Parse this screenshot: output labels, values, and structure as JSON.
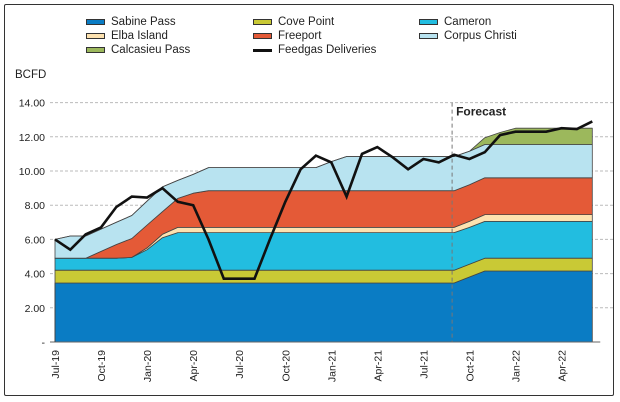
{
  "chart_data": {
    "type": "area",
    "stacked": true,
    "title": "",
    "xlabel": "",
    "ylabel": "BCFD",
    "ylim": [
      0,
      14
    ],
    "yticks": [
      "-",
      "2.00",
      "4.00",
      "6.00",
      "8.00",
      "10.00",
      "12.00",
      "14.00"
    ],
    "ytick_values": [
      0,
      2,
      4,
      6,
      8,
      10,
      12,
      14
    ],
    "grid": "horizontal-dashed",
    "legend_position": "top",
    "x": [
      "Jul-19",
      "Aug-19",
      "Sep-19",
      "Oct-19",
      "Nov-19",
      "Dec-19",
      "Jan-20",
      "Feb-20",
      "Mar-20",
      "Apr-20",
      "May-20",
      "Jun-20",
      "Jul-20",
      "Aug-20",
      "Sep-20",
      "Oct-20",
      "Nov-20",
      "Dec-20",
      "Jan-21",
      "Feb-21",
      "Mar-21",
      "Apr-21",
      "May-21",
      "Jun-21",
      "Jul-21",
      "Aug-21",
      "Sep-21",
      "Oct-21",
      "Nov-21",
      "Dec-21",
      "Jan-22",
      "Feb-22",
      "Mar-22",
      "Apr-22",
      "May-22",
      "Jun-22"
    ],
    "xtick_labels": [
      "Jul-19",
      "Oct-19",
      "Jan-20",
      "Apr-20",
      "Jul-20",
      "Oct-20",
      "Jan-21",
      "Apr-21",
      "Jul-21",
      "Oct-21",
      "Jan-22",
      "Apr-22"
    ],
    "forecast_start": "Sep-21",
    "forecast_label": "Forecast",
    "series": [
      {
        "name": "Sabine Pass",
        "kind": "area",
        "color": "#0a7cc4",
        "values": [
          3.45,
          3.45,
          3.45,
          3.45,
          3.45,
          3.45,
          3.45,
          3.45,
          3.45,
          3.45,
          3.45,
          3.45,
          3.45,
          3.45,
          3.45,
          3.45,
          3.45,
          3.45,
          3.45,
          3.45,
          3.45,
          3.45,
          3.45,
          3.45,
          3.45,
          3.45,
          3.45,
          3.8,
          4.15,
          4.15,
          4.15,
          4.15,
          4.15,
          4.15,
          4.15,
          4.15
        ]
      },
      {
        "name": "Cove Point",
        "kind": "area",
        "color": "#c9c935",
        "values": [
          0.75,
          0.75,
          0.75,
          0.75,
          0.75,
          0.75,
          0.75,
          0.75,
          0.75,
          0.75,
          0.75,
          0.75,
          0.75,
          0.75,
          0.75,
          0.75,
          0.75,
          0.75,
          0.75,
          0.75,
          0.75,
          0.75,
          0.75,
          0.75,
          0.75,
          0.75,
          0.75,
          0.75,
          0.75,
          0.75,
          0.75,
          0.75,
          0.75,
          0.75,
          0.75,
          0.75
        ]
      },
      {
        "name": "Cameron",
        "kind": "area",
        "color": "#22bde0",
        "values": [
          0.7,
          0.7,
          0.7,
          0.7,
          0.7,
          0.75,
          1.2,
          1.9,
          2.2,
          2.2,
          2.2,
          2.2,
          2.2,
          2.2,
          2.2,
          2.2,
          2.2,
          2.2,
          2.2,
          2.2,
          2.2,
          2.2,
          2.2,
          2.2,
          2.2,
          2.2,
          2.2,
          2.15,
          2.15,
          2.15,
          2.15,
          2.15,
          2.15,
          2.15,
          2.15,
          2.15
        ]
      },
      {
        "name": "Elba Island",
        "kind": "area",
        "color": "#fde2b0",
        "values": [
          0,
          0,
          0,
          0,
          0,
          0,
          0.1,
          0.2,
          0.3,
          0.3,
          0.3,
          0.3,
          0.3,
          0.3,
          0.3,
          0.3,
          0.3,
          0.3,
          0.3,
          0.3,
          0.3,
          0.3,
          0.3,
          0.3,
          0.3,
          0.3,
          0.3,
          0.35,
          0.4,
          0.4,
          0.4,
          0.4,
          0.4,
          0.4,
          0.4,
          0.4
        ]
      },
      {
        "name": "Freeport",
        "kind": "area",
        "color": "#e45a37",
        "values": [
          0,
          0,
          0,
          0.4,
          0.8,
          1.1,
          1.34,
          1.32,
          1.7,
          2.0,
          2.15,
          2.15,
          2.15,
          2.15,
          2.15,
          2.15,
          2.15,
          2.15,
          2.15,
          2.15,
          2.15,
          2.15,
          2.15,
          2.15,
          2.15,
          2.15,
          2.15,
          2.15,
          2.15,
          2.15,
          2.15,
          2.15,
          2.15,
          2.15,
          2.15,
          2.15
        ]
      },
      {
        "name": "Corpus Christi",
        "kind": "area",
        "color": "#b8e3f0",
        "values": [
          1.1,
          1.3,
          1.3,
          1.3,
          1.3,
          1.35,
          1.4,
          1.45,
          1.05,
          1.1,
          1.35,
          1.35,
          1.35,
          1.35,
          1.35,
          1.35,
          1.35,
          1.35,
          1.7,
          2.0,
          2.0,
          2.0,
          2.0,
          2.0,
          2.0,
          2.0,
          2.0,
          1.95,
          1.95,
          1.95,
          1.95,
          1.95,
          1.95,
          1.95,
          1.95,
          1.95
        ]
      },
      {
        "name": "Calcasieu Pass",
        "kind": "area",
        "color": "#9cb85c",
        "values": [
          0,
          0,
          0,
          0,
          0,
          0,
          0,
          0,
          0,
          0,
          0,
          0,
          0,
          0,
          0,
          0,
          0,
          0,
          0,
          0,
          0,
          0,
          0,
          0,
          0,
          0,
          0,
          0,
          0.4,
          0.7,
          0.95,
          0.95,
          0.95,
          0.95,
          0.95,
          0.95
        ]
      },
      {
        "name": "Feedgas Deliveries",
        "kind": "line",
        "color": "#111111",
        "values": [
          6.0,
          5.4,
          6.3,
          6.7,
          7.9,
          8.5,
          8.45,
          9.0,
          8.2,
          8.0,
          6.0,
          3.7,
          3.7,
          3.7,
          6.0,
          8.2,
          10.1,
          10.9,
          10.5,
          8.5,
          11.0,
          11.4,
          10.8,
          10.1,
          10.7,
          10.5,
          10.95,
          10.7,
          11.1,
          12.1,
          12.3,
          12.3,
          12.3,
          12.5,
          12.45,
          12.9
        ]
      }
    ]
  },
  "legend": {
    "items": [
      {
        "label": "Sabine Pass",
        "color": "#0a7cc4",
        "kind": "swatch"
      },
      {
        "label": "Cove Point",
        "color": "#c9c935",
        "kind": "swatch"
      },
      {
        "label": "Cameron",
        "color": "#22bde0",
        "kind": "swatch"
      },
      {
        "label": "Elba Island",
        "color": "#fde2b0",
        "kind": "swatch"
      },
      {
        "label": "Freeport",
        "color": "#e45a37",
        "kind": "swatch"
      },
      {
        "label": "Corpus Christi",
        "color": "#b8e3f0",
        "kind": "swatch"
      },
      {
        "label": "Calcasieu Pass",
        "color": "#9cb85c",
        "kind": "swatch"
      },
      {
        "label": "Feedgas Deliveries",
        "color": "#111111",
        "kind": "line"
      }
    ]
  }
}
